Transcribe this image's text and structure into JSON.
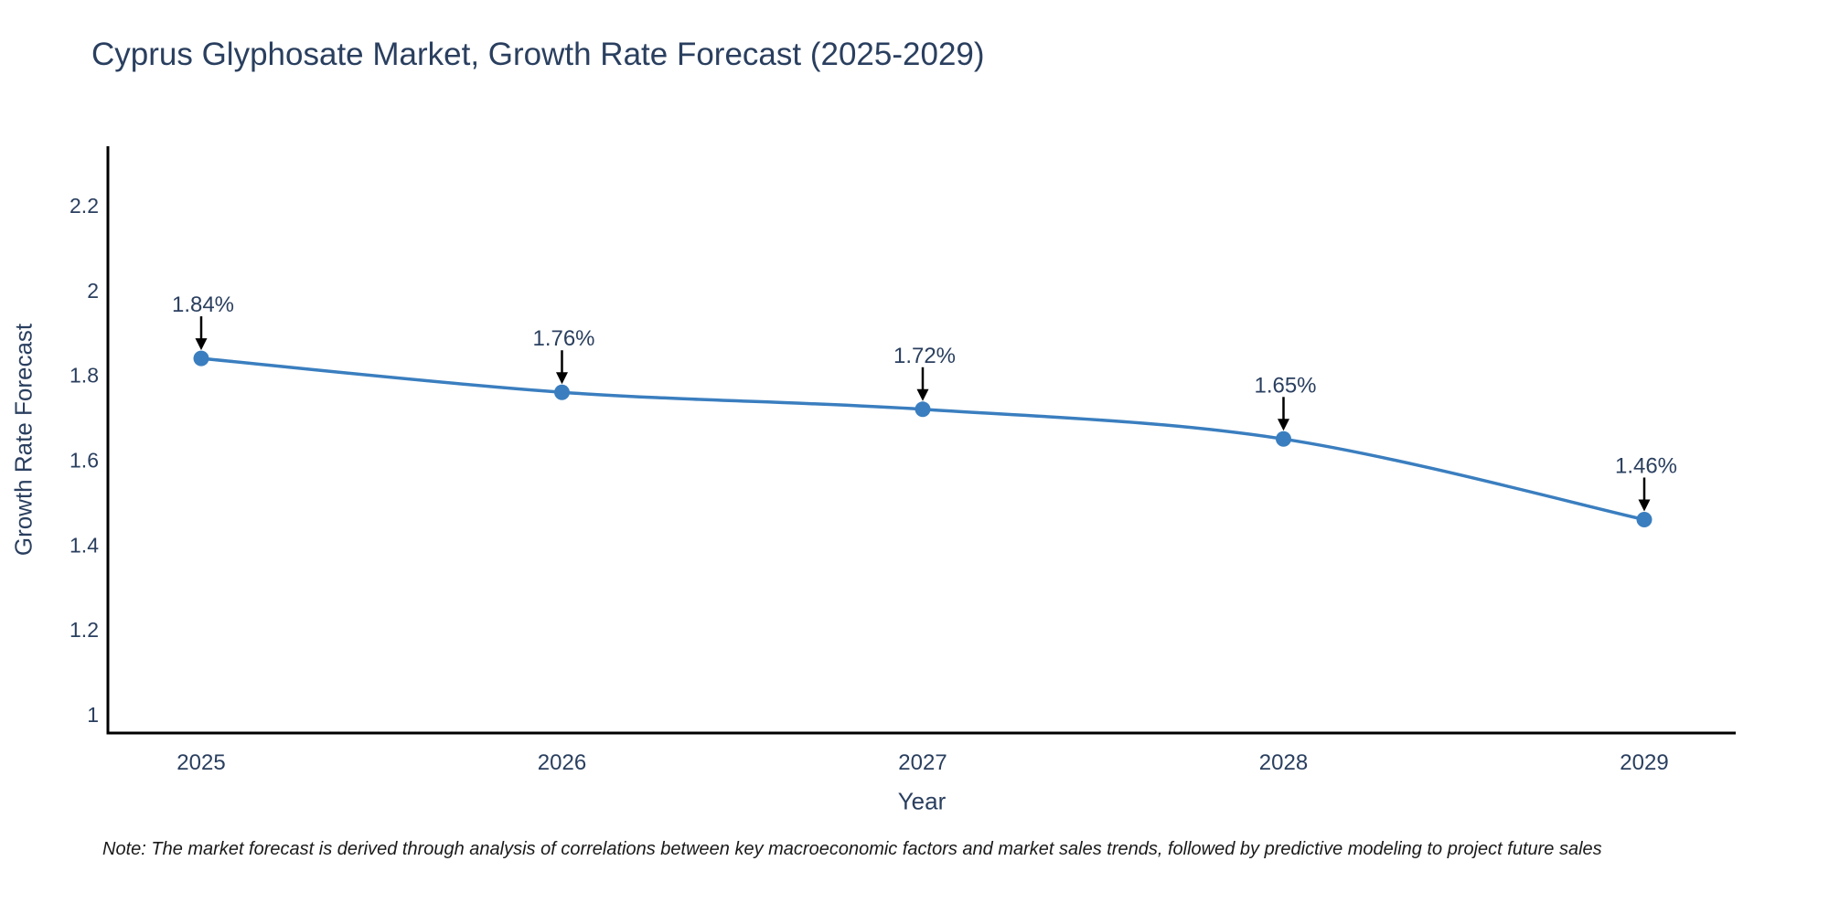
{
  "title": "Cyprus Glyphosate Market, Growth Rate Forecast (2025-2029)",
  "axes": {
    "x_label": "Year",
    "y_label": "Growth Rate Forecast"
  },
  "note": "Note: The market forecast is derived through analysis of correlations between key macroeconomic factors and market sales trends, followed by predictive modeling to project future sales",
  "chart_data": {
    "type": "line",
    "title": "Cyprus Glyphosate Market, Growth Rate Forecast (2025-2029)",
    "xlabel": "Year",
    "ylabel": "Growth Rate Forecast",
    "categories": [
      "2025",
      "2026",
      "2027",
      "2028",
      "2029"
    ],
    "series": [
      {
        "name": "Growth Rate Forecast",
        "values": [
          1.84,
          1.76,
          1.72,
          1.65,
          1.46
        ],
        "point_labels": [
          "1.84%",
          "1.76%",
          "1.72%",
          "1.65%",
          "1.46%"
        ]
      }
    ],
    "yticks": [
      1,
      1.2,
      1.4,
      1.6,
      1.8,
      2,
      2.2
    ],
    "ytick_labels": [
      "1",
      "1.2",
      "1.4",
      "1.6",
      "1.8",
      "2",
      "2.2"
    ],
    "ylim": [
      0.96,
      2.34
    ],
    "grid": false,
    "legend_position": "none",
    "line_shape": "spline",
    "colors": {
      "line": "#3a7ebf",
      "marker": "#3a7ebf",
      "axis_line": "#000000",
      "text": "#2a3f5f",
      "annotation_arrow": "#000000",
      "background": "#ffffff"
    }
  }
}
